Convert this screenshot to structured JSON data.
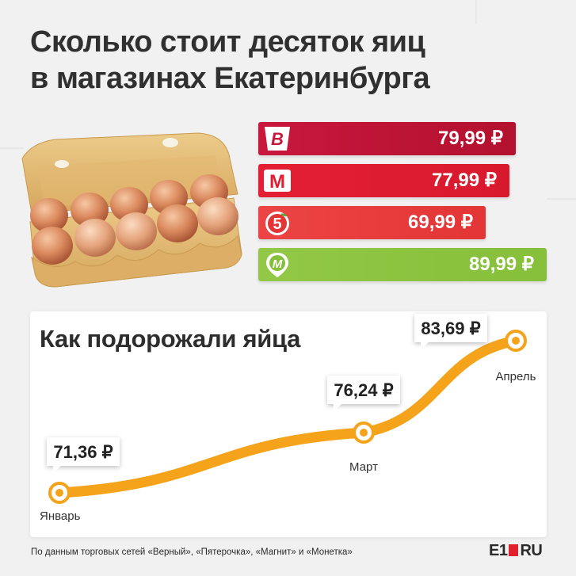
{
  "header": {
    "title_line1": "Сколько стоит десяток яиц",
    "title_line2": "в магазинах Екатеринбурга"
  },
  "colors": {
    "verny": "#c9173a",
    "magnit": "#e21d31",
    "pyaterochka": "#ea3b3e",
    "monetka": "#8cc63f",
    "accent": "#f5a31a"
  },
  "stores": [
    {
      "logo_icon": "verny-logo-icon",
      "logo_text": "B",
      "price": "79,99 ₽",
      "value": 79.99
    },
    {
      "logo_icon": "magnit-logo-icon",
      "logo_text": "M",
      "price": "77,99 ₽",
      "value": 77.99
    },
    {
      "logo_icon": "pyaterochka-logo-icon",
      "logo_text": "5",
      "price": "69,99 ₽",
      "value": 69.99
    },
    {
      "logo_icon": "monetka-logo-icon",
      "logo_text": "M",
      "price": "89,99 ₽",
      "value": 89.99
    }
  ],
  "chart_data": {
    "type": "line",
    "title": "Как подорожали яйца",
    "categories": [
      "Январь",
      "Март",
      "Апрель"
    ],
    "values": [
      71.36,
      76.24,
      83.69
    ],
    "value_labels": [
      "71,36 ₽",
      "76,24 ₽",
      "83,69 ₽"
    ],
    "grid": false,
    "legend": "none"
  },
  "footer": {
    "source": "По данным торговых сетей «Верный», «Пятерочка», «Магнит» и «Монетка»",
    "brand_left": "E1",
    "brand_right": "RU"
  }
}
